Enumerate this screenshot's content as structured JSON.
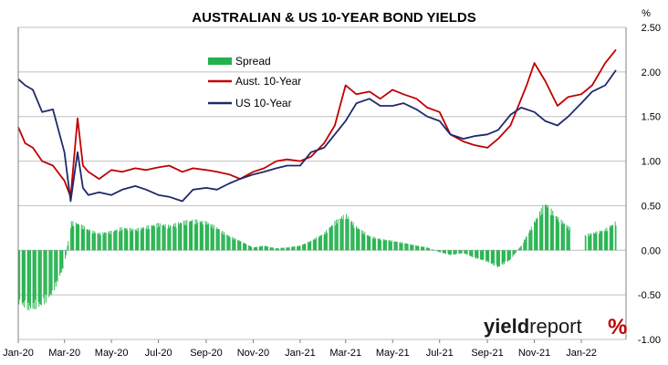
{
  "colors": {
    "spread": "#22b14c",
    "aust": "#c00000",
    "us": "#1f2a6b",
    "grid": "#bfbfbf",
    "brand_red": "#c00000",
    "brand_green": "#22b14c"
  },
  "brand": {
    "name_a": "yield",
    "name_b": "report",
    "pct": "%"
  },
  "chart_data": {
    "type": "line",
    "title": "AUSTRALIAN & US 10-YEAR BOND YIELDS",
    "ylabel": "%",
    "ylim": [
      -1.0,
      2.5
    ],
    "yticks": [
      2.5,
      2.0,
      1.5,
      1.0,
      0.5,
      0.0,
      -0.5,
      -1.0
    ],
    "ytick_labels": [
      "2.50",
      "2.00",
      "1.50",
      "1.00",
      "0.50",
      "0.00",
      "-0.50",
      "-1.00"
    ],
    "xlim": [
      "2020-01-01",
      "2022-02-28"
    ],
    "xticks": [
      "2020-01-01",
      "2020-03-01",
      "2020-05-01",
      "2020-07-01",
      "2020-09-01",
      "2020-11-01",
      "2021-01-01",
      "2021-03-01",
      "2021-05-01",
      "2021-07-01",
      "2021-09-01",
      "2021-11-01",
      "2022-01-01"
    ],
    "xtick_labels": [
      "Jan-20",
      "Mar-20",
      "May-20",
      "Jul-20",
      "Sep-20",
      "Nov-20",
      "Jan-21",
      "Mar-21",
      "May-21",
      "Jul-21",
      "Sep-21",
      "Nov-21",
      "Jan-22"
    ],
    "grid": "horizontal",
    "legend_position": "top-left",
    "series": [
      {
        "name": "Spread",
        "kind": "bar",
        "x": [
          "2020-01-01",
          "2020-01-15",
          "2020-02-01",
          "2020-02-15",
          "2020-03-01",
          "2020-03-10",
          "2020-03-20",
          "2020-04-01",
          "2020-04-15",
          "2020-05-01",
          "2020-05-15",
          "2020-06-01",
          "2020-06-15",
          "2020-07-01",
          "2020-07-15",
          "2020-08-01",
          "2020-08-15",
          "2020-09-01",
          "2020-09-15",
          "2020-10-01",
          "2020-10-15",
          "2020-11-01",
          "2020-11-15",
          "2020-12-01",
          "2020-12-15",
          "2021-01-01",
          "2021-01-15",
          "2021-02-01",
          "2021-02-15",
          "2021-03-01",
          "2021-03-15",
          "2021-04-01",
          "2021-04-15",
          "2021-05-01",
          "2021-05-15",
          "2021-06-01",
          "2021-06-15",
          "2021-07-01",
          "2021-07-15",
          "2021-08-01",
          "2021-08-15",
          "2021-09-01",
          "2021-09-15",
          "2021-10-01",
          "2021-10-15",
          "2021-11-01",
          "2021-11-15",
          "2021-12-01",
          "2021-12-15",
          "2022-01-01",
          "2022-01-15",
          "2022-02-01",
          "2022-02-15"
        ],
        "values": [
          -0.55,
          -0.62,
          -0.58,
          -0.45,
          -0.15,
          0.3,
          0.28,
          0.22,
          0.18,
          0.2,
          0.24,
          0.22,
          0.25,
          0.28,
          0.26,
          0.3,
          0.32,
          0.3,
          0.24,
          0.15,
          0.1,
          0.03,
          0.05,
          0.02,
          0.03,
          0.05,
          0.1,
          0.18,
          0.3,
          0.38,
          0.25,
          0.15,
          0.12,
          0.1,
          0.08,
          0.05,
          0.03,
          -0.02,
          -0.05,
          -0.03,
          -0.08,
          -0.12,
          -0.18,
          -0.1,
          0.05,
          0.3,
          0.5,
          0.35,
          0.25,
          0.15,
          0.18,
          0.22,
          0.3
        ]
      },
      {
        "name": "Aust. 10-Year",
        "kind": "line",
        "x": [
          "2020-01-01",
          "2020-01-10",
          "2020-01-20",
          "2020-02-01",
          "2020-02-15",
          "2020-03-01",
          "2020-03-09",
          "2020-03-18",
          "2020-03-25",
          "2020-04-01",
          "2020-04-15",
          "2020-05-01",
          "2020-05-15",
          "2020-06-01",
          "2020-06-15",
          "2020-07-01",
          "2020-07-15",
          "2020-08-01",
          "2020-08-15",
          "2020-09-01",
          "2020-09-15",
          "2020-10-01",
          "2020-10-15",
          "2020-11-01",
          "2020-11-15",
          "2020-12-01",
          "2020-12-15",
          "2021-01-01",
          "2021-01-15",
          "2021-02-01",
          "2021-02-15",
          "2021-03-01",
          "2021-03-15",
          "2021-04-01",
          "2021-04-15",
          "2021-05-01",
          "2021-05-15",
          "2021-06-01",
          "2021-06-15",
          "2021-07-01",
          "2021-07-15",
          "2021-08-01",
          "2021-08-15",
          "2021-09-01",
          "2021-09-15",
          "2021-10-01",
          "2021-10-15",
          "2021-10-22",
          "2021-11-01",
          "2021-11-15",
          "2021-12-01",
          "2021-12-15",
          "2022-01-01",
          "2022-01-15",
          "2022-02-01",
          "2022-02-15"
        ],
        "values": [
          1.38,
          1.2,
          1.15,
          1.0,
          0.95,
          0.78,
          0.6,
          1.48,
          0.95,
          0.88,
          0.8,
          0.9,
          0.88,
          0.92,
          0.9,
          0.93,
          0.95,
          0.88,
          0.92,
          0.9,
          0.88,
          0.85,
          0.8,
          0.88,
          0.92,
          1.0,
          1.02,
          1.0,
          1.05,
          1.2,
          1.4,
          1.85,
          1.75,
          1.78,
          1.7,
          1.8,
          1.75,
          1.7,
          1.6,
          1.55,
          1.3,
          1.22,
          1.18,
          1.15,
          1.25,
          1.4,
          1.7,
          1.85,
          2.1,
          1.9,
          1.62,
          1.72,
          1.75,
          1.85,
          2.1,
          2.25
        ]
      },
      {
        "name": "US 10-Year",
        "kind": "line",
        "x": [
          "2020-01-01",
          "2020-01-10",
          "2020-01-20",
          "2020-02-01",
          "2020-02-15",
          "2020-03-01",
          "2020-03-09",
          "2020-03-18",
          "2020-03-25",
          "2020-04-01",
          "2020-04-15",
          "2020-05-01",
          "2020-05-15",
          "2020-06-01",
          "2020-06-15",
          "2020-07-01",
          "2020-07-15",
          "2020-08-01",
          "2020-08-15",
          "2020-09-01",
          "2020-09-15",
          "2020-10-01",
          "2020-10-15",
          "2020-11-01",
          "2020-11-15",
          "2020-12-01",
          "2020-12-15",
          "2021-01-01",
          "2021-01-15",
          "2021-02-01",
          "2021-02-15",
          "2021-03-01",
          "2021-03-15",
          "2021-04-01",
          "2021-04-15",
          "2021-05-01",
          "2021-05-15",
          "2021-06-01",
          "2021-06-15",
          "2021-07-01",
          "2021-07-15",
          "2021-08-01",
          "2021-08-15",
          "2021-09-01",
          "2021-09-15",
          "2021-10-01",
          "2021-10-15",
          "2021-11-01",
          "2021-11-15",
          "2021-12-01",
          "2021-12-15",
          "2022-01-01",
          "2022-01-15",
          "2022-02-01",
          "2022-02-15"
        ],
        "values": [
          1.92,
          1.85,
          1.8,
          1.55,
          1.58,
          1.1,
          0.55,
          1.1,
          0.7,
          0.62,
          0.65,
          0.62,
          0.68,
          0.72,
          0.68,
          0.62,
          0.6,
          0.55,
          0.68,
          0.7,
          0.68,
          0.75,
          0.8,
          0.85,
          0.88,
          0.92,
          0.95,
          0.95,
          1.1,
          1.15,
          1.3,
          1.45,
          1.65,
          1.7,
          1.62,
          1.62,
          1.65,
          1.58,
          1.5,
          1.45,
          1.3,
          1.25,
          1.28,
          1.3,
          1.35,
          1.52,
          1.6,
          1.55,
          1.45,
          1.4,
          1.5,
          1.65,
          1.78,
          1.85,
          2.02
        ]
      }
    ]
  }
}
